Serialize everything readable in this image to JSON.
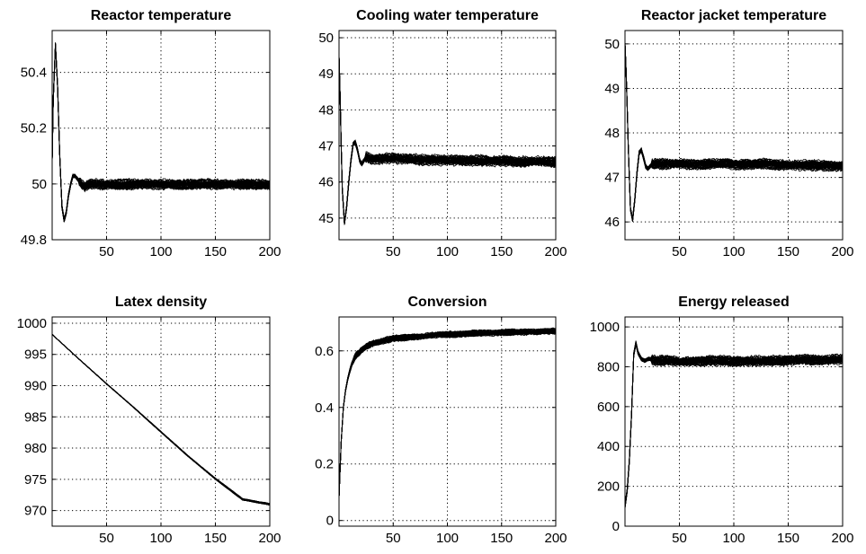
{
  "chart_data": [
    {
      "type": "line",
      "title": "Reactor temperature",
      "xlim": [
        0,
        200
      ],
      "ylim": [
        49.8,
        50.55
      ],
      "xticks": [
        50,
        100,
        150,
        200
      ],
      "yticks": [
        49.8,
        50,
        50.2,
        50.4
      ],
      "ytick_labels": [
        "49.8",
        "50",
        "50.2",
        "50.4"
      ],
      "grid": true,
      "series_count": 40,
      "series": [
        {
          "x": [
            0,
            1,
            3,
            5,
            7,
            9,
            11,
            13,
            15,
            17,
            19,
            21,
            23,
            25,
            27,
            30,
            35,
            40,
            50,
            75,
            100,
            125,
            150,
            175,
            200
          ],
          "y": [
            50.08,
            50.3,
            50.5,
            50.35,
            50.1,
            49.92,
            49.87,
            49.9,
            49.96,
            50.0,
            50.03,
            50.03,
            50.02,
            50.01,
            50.0,
            49.99,
            50.0,
            50.0,
            50.0,
            50.0,
            50.0,
            50.0,
            50.0,
            50.0,
            50.0
          ]
        }
      ]
    },
    {
      "type": "line",
      "title": "Cooling water temperature",
      "xlim": [
        0,
        200
      ],
      "ylim": [
        44.4,
        50.2
      ],
      "xticks": [
        50,
        100,
        150,
        200
      ],
      "yticks": [
        45,
        46,
        47,
        48,
        49,
        50
      ],
      "ytick_labels": [
        "45",
        "46",
        "47",
        "48",
        "49",
        "50"
      ],
      "grid": true,
      "series_count": 40,
      "series": [
        {
          "x": [
            0,
            1,
            2,
            3,
            5,
            7,
            9,
            11,
            13,
            15,
            17,
            19,
            21,
            23,
            25,
            30,
            40,
            50,
            75,
            100,
            125,
            150,
            175,
            200
          ],
          "y": [
            49.5,
            48.4,
            47.0,
            45.8,
            44.85,
            45.3,
            46.0,
            46.6,
            47.05,
            47.1,
            46.9,
            46.6,
            46.5,
            46.6,
            46.7,
            46.65,
            46.65,
            46.65,
            46.62,
            46.6,
            46.6,
            46.58,
            46.57,
            46.55
          ]
        }
      ]
    },
    {
      "type": "line",
      "title": "Reactor jacket temperature",
      "xlim": [
        0,
        200
      ],
      "ylim": [
        45.6,
        50.3
      ],
      "xticks": [
        50,
        100,
        150,
        200
      ],
      "yticks": [
        46,
        47,
        48,
        49,
        50
      ],
      "ytick_labels": [
        "46",
        "47",
        "48",
        "49",
        "50"
      ],
      "grid": true,
      "series_count": 40,
      "series": [
        {
          "x": [
            0,
            1,
            2,
            3,
            5,
            7,
            9,
            11,
            13,
            15,
            17,
            19,
            21,
            23,
            25,
            30,
            40,
            50,
            75,
            100,
            125,
            150,
            175,
            200
          ],
          "y": [
            50.0,
            49.4,
            48.6,
            47.7,
            46.3,
            46.05,
            46.5,
            47.1,
            47.55,
            47.62,
            47.45,
            47.25,
            47.2,
            47.25,
            47.3,
            47.3,
            47.3,
            47.3,
            47.3,
            47.3,
            47.3,
            47.28,
            47.27,
            47.25
          ]
        }
      ]
    },
    {
      "type": "line",
      "title": "Latex density",
      "xlim": [
        0,
        200
      ],
      "ylim": [
        967.5,
        1001
      ],
      "xticks": [
        50,
        100,
        150,
        200
      ],
      "yticks": [
        970,
        975,
        980,
        985,
        990,
        995,
        1000
      ],
      "ytick_labels": [
        "970",
        "975",
        "980",
        "985",
        "990",
        "995",
        "1000"
      ],
      "grid": true,
      "series_count": 40,
      "series": [
        {
          "x": [
            0,
            25,
            50,
            75,
            100,
            125,
            150,
            175,
            200
          ],
          "y": [
            998.2,
            994.2,
            990.3,
            986.5,
            982.6,
            978.7,
            975.1,
            971.8,
            971.0
          ]
        }
      ]
    },
    {
      "type": "line",
      "title": "Conversion",
      "xlim": [
        0,
        200
      ],
      "ylim": [
        -0.02,
        0.72
      ],
      "xticks": [
        50,
        100,
        150,
        200
      ],
      "yticks": [
        0,
        0.2,
        0.4,
        0.6
      ],
      "ytick_labels": [
        "0",
        "0.2",
        "0.4",
        "0.6"
      ],
      "grid": true,
      "series_count": 40,
      "series": [
        {
          "x": [
            0,
            2,
            4,
            6,
            8,
            10,
            12,
            15,
            20,
            25,
            30,
            40,
            50,
            75,
            100,
            150,
            200
          ],
          "y": [
            0.08,
            0.28,
            0.4,
            0.46,
            0.5,
            0.53,
            0.555,
            0.58,
            0.6,
            0.615,
            0.625,
            0.635,
            0.643,
            0.652,
            0.658,
            0.665,
            0.67
          ]
        }
      ]
    },
    {
      "type": "line",
      "title": "Energy released",
      "xlim": [
        0,
        200
      ],
      "ylim": [
        0,
        1050
      ],
      "xticks": [
        50,
        100,
        150,
        200
      ],
      "yticks": [
        0,
        200,
        400,
        600,
        800,
        1000
      ],
      "ytick_labels": [
        "0",
        "200",
        "400",
        "600",
        "800",
        "1000"
      ],
      "grid": true,
      "series_count": 40,
      "series": [
        {
          "x": [
            0,
            2,
            4,
            6,
            8,
            10,
            12,
            15,
            18,
            22,
            25,
            30,
            40,
            50,
            75,
            100,
            125,
            150,
            175,
            200
          ],
          "y": [
            100,
            180,
            330,
            560,
            860,
            920,
            870,
            840,
            830,
            840,
            835,
            830,
            835,
            830,
            830,
            830,
            830,
            835,
            835,
            840
          ]
        }
      ]
    }
  ]
}
